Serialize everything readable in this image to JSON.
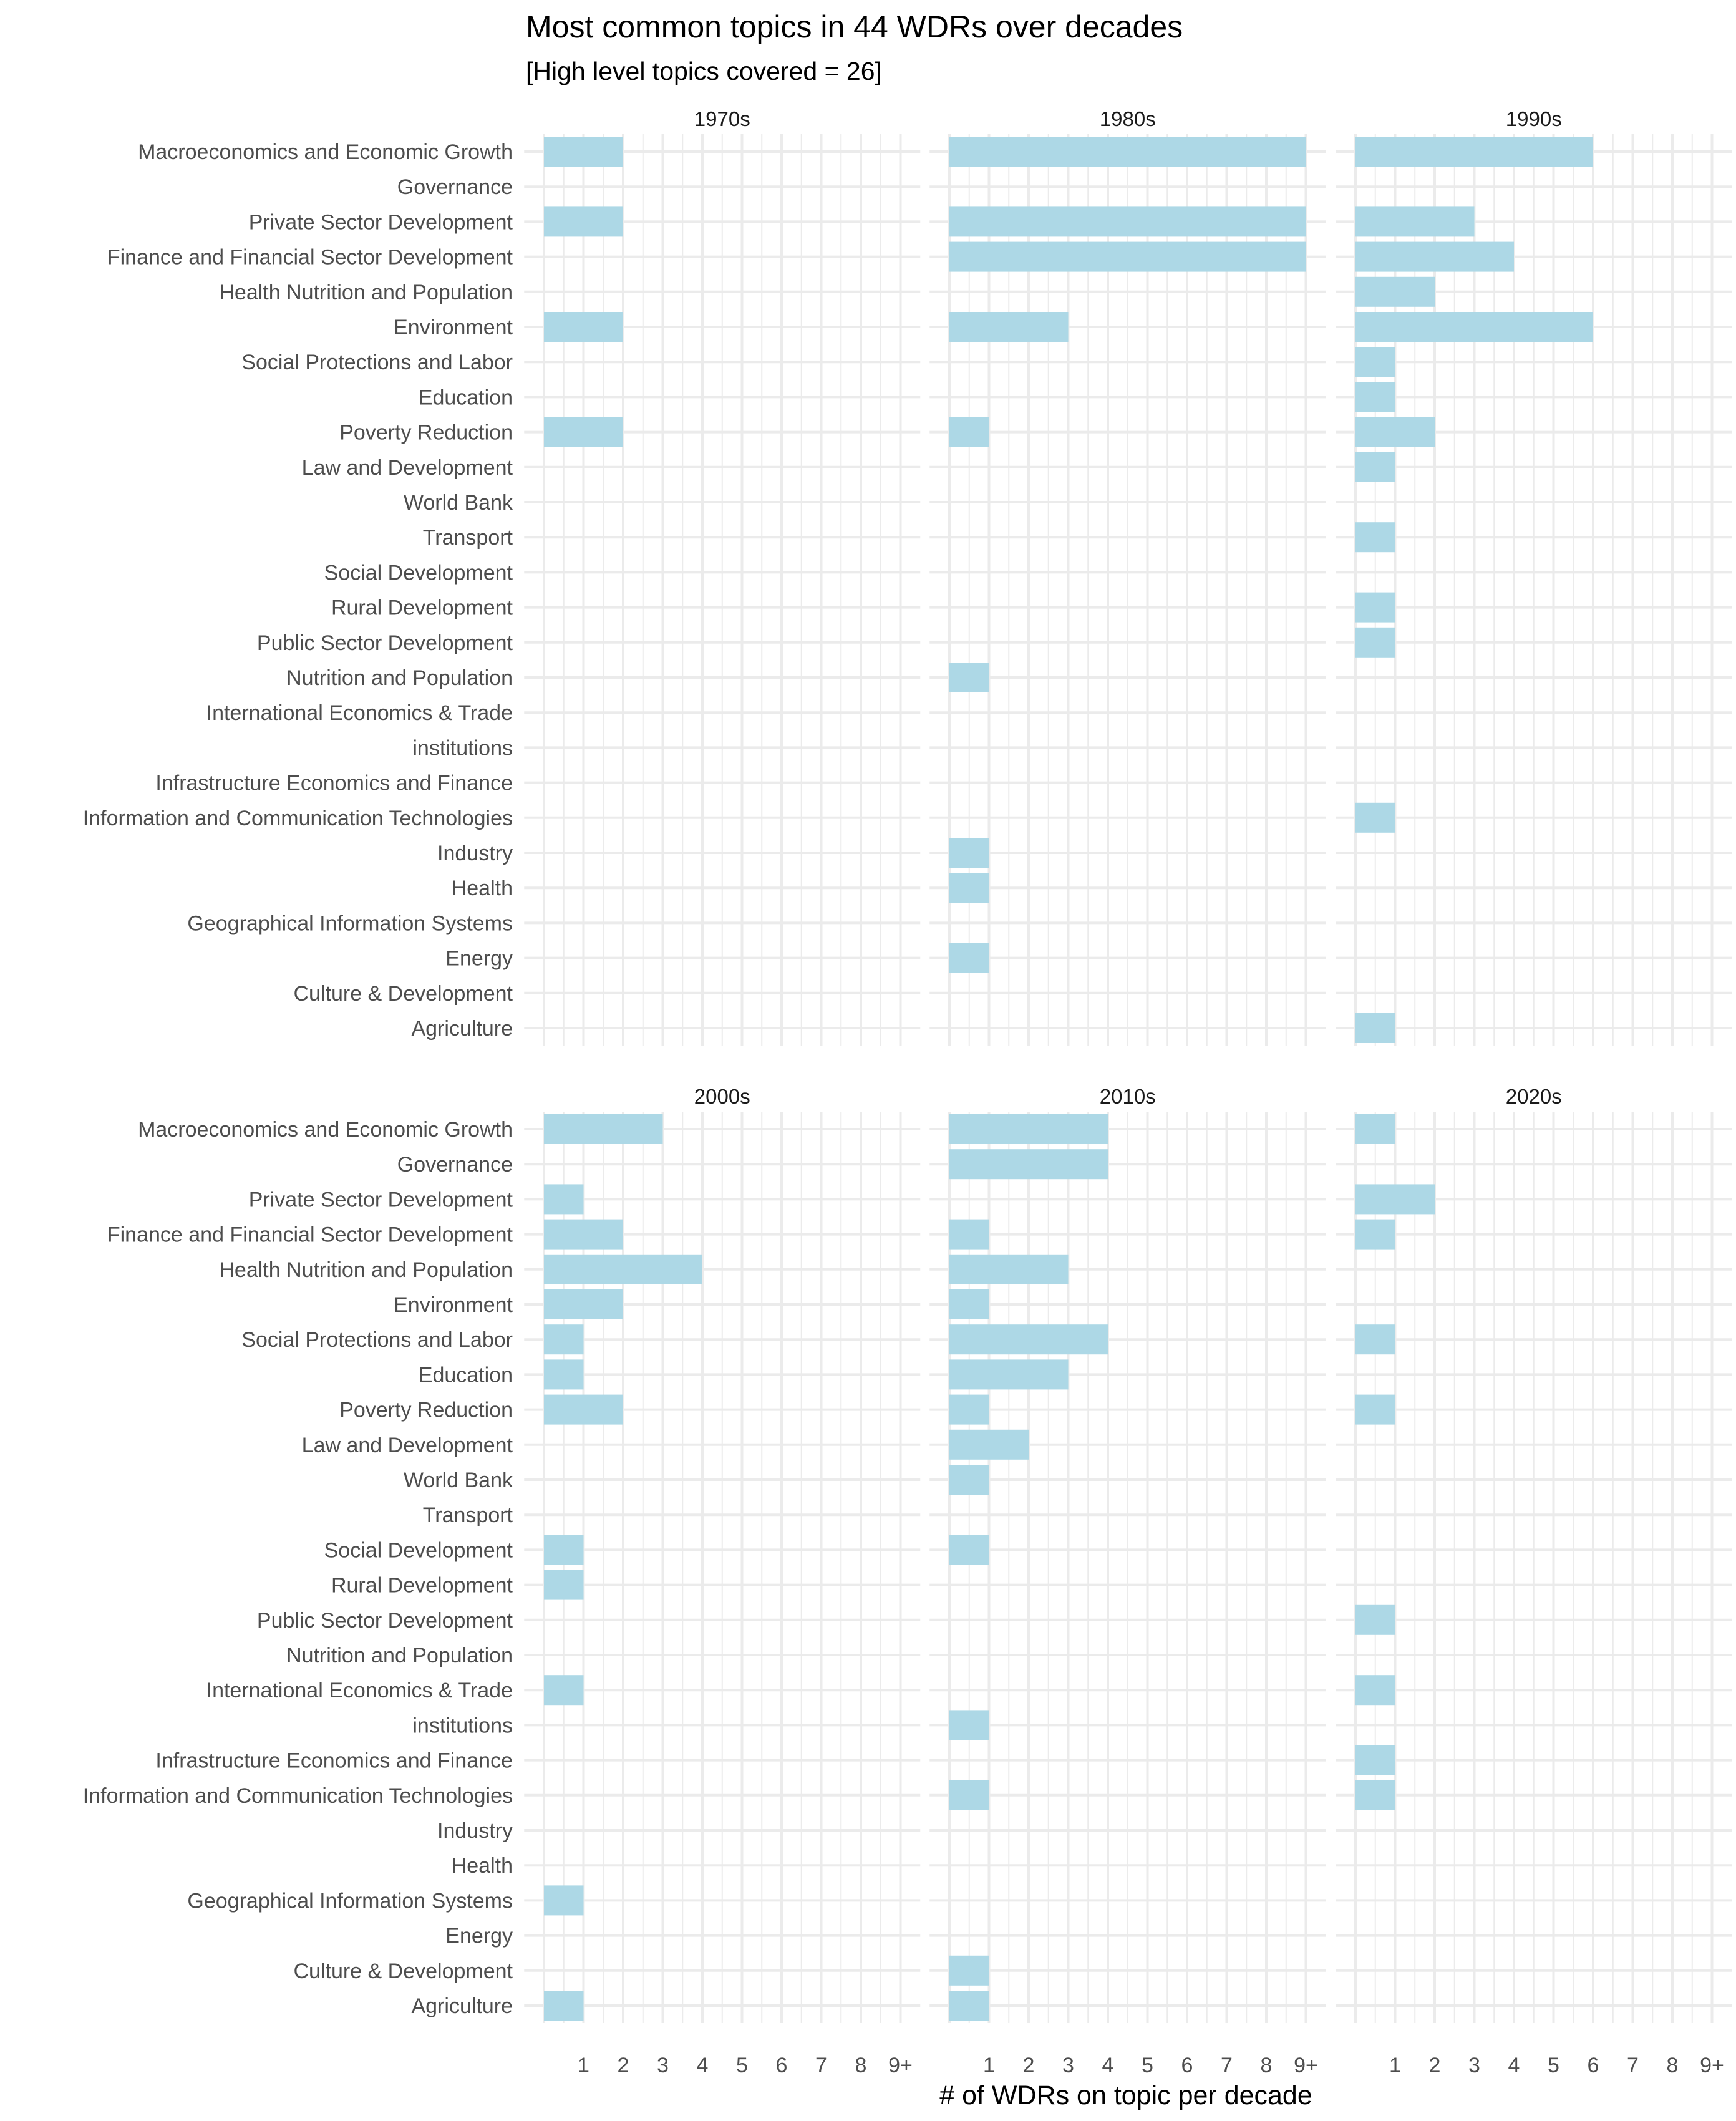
{
  "chart_data": {
    "type": "bar",
    "orientation": "horizontal",
    "title": "Most common topics in 44 WDRs over decades",
    "subtitle": "[High level topics covered = 26]",
    "xlabel": "# of WDRs on topic per decade",
    "ylabel": "",
    "x_ticks": [
      "1",
      "2",
      "3",
      "4",
      "5",
      "6",
      "7",
      "8",
      "9+"
    ],
    "xlim": [
      0,
      9
    ],
    "grid": true,
    "bar_color": "#ADD8E6",
    "grid_color": "#EBEBEB",
    "categories": [
      "Macroeconomics and Economic Growth",
      "Governance",
      "Private Sector Development",
      "Finance and Financial Sector Development",
      "Health Nutrition and Population",
      "Environment",
      "Social Protections and Labor",
      "Education",
      "Poverty Reduction",
      "Law and Development",
      "World Bank",
      "Transport",
      "Social Development",
      "Rural Development",
      "Public Sector Development",
      "Nutrition and Population",
      "International Economics & Trade",
      "institutions",
      "Infrastructure Economics and Finance",
      "Information and Communication Technologies",
      "Industry",
      "Health",
      "Geographical Information Systems",
      "Energy",
      "Culture & Development",
      "Agriculture"
    ],
    "panels": [
      {
        "name": "1970s",
        "values": [
          2,
          0,
          2,
          0,
          0,
          2,
          0,
          0,
          2,
          0,
          0,
          0,
          0,
          0,
          0,
          0,
          0,
          0,
          0,
          0,
          0,
          0,
          0,
          0,
          0,
          0
        ]
      },
      {
        "name": "1980s",
        "values": [
          9,
          0,
          9,
          9,
          0,
          3,
          0,
          0,
          1,
          0,
          0,
          0,
          0,
          0,
          0,
          1,
          0,
          0,
          0,
          0,
          1,
          1,
          0,
          1,
          0,
          0
        ]
      },
      {
        "name": "1990s",
        "values": [
          6,
          0,
          3,
          4,
          2,
          6,
          1,
          1,
          2,
          1,
          0,
          1,
          0,
          1,
          1,
          0,
          0,
          0,
          0,
          1,
          0,
          0,
          0,
          0,
          0,
          1
        ]
      },
      {
        "name": "2000s",
        "values": [
          3,
          0,
          1,
          2,
          4,
          2,
          1,
          1,
          2,
          0,
          0,
          0,
          1,
          1,
          0,
          0,
          1,
          0,
          0,
          0,
          0,
          0,
          1,
          0,
          0,
          1
        ]
      },
      {
        "name": "2010s",
        "values": [
          4,
          4,
          0,
          1,
          3,
          1,
          4,
          3,
          1,
          2,
          1,
          0,
          1,
          0,
          0,
          0,
          0,
          1,
          0,
          1,
          0,
          0,
          0,
          0,
          1,
          1
        ]
      },
      {
        "name": "2020s",
        "values": [
          1,
          0,
          2,
          1,
          0,
          0,
          1,
          0,
          1,
          0,
          0,
          0,
          0,
          0,
          1,
          0,
          1,
          0,
          1,
          1,
          0,
          0,
          0,
          0,
          0,
          0
        ]
      }
    ]
  }
}
